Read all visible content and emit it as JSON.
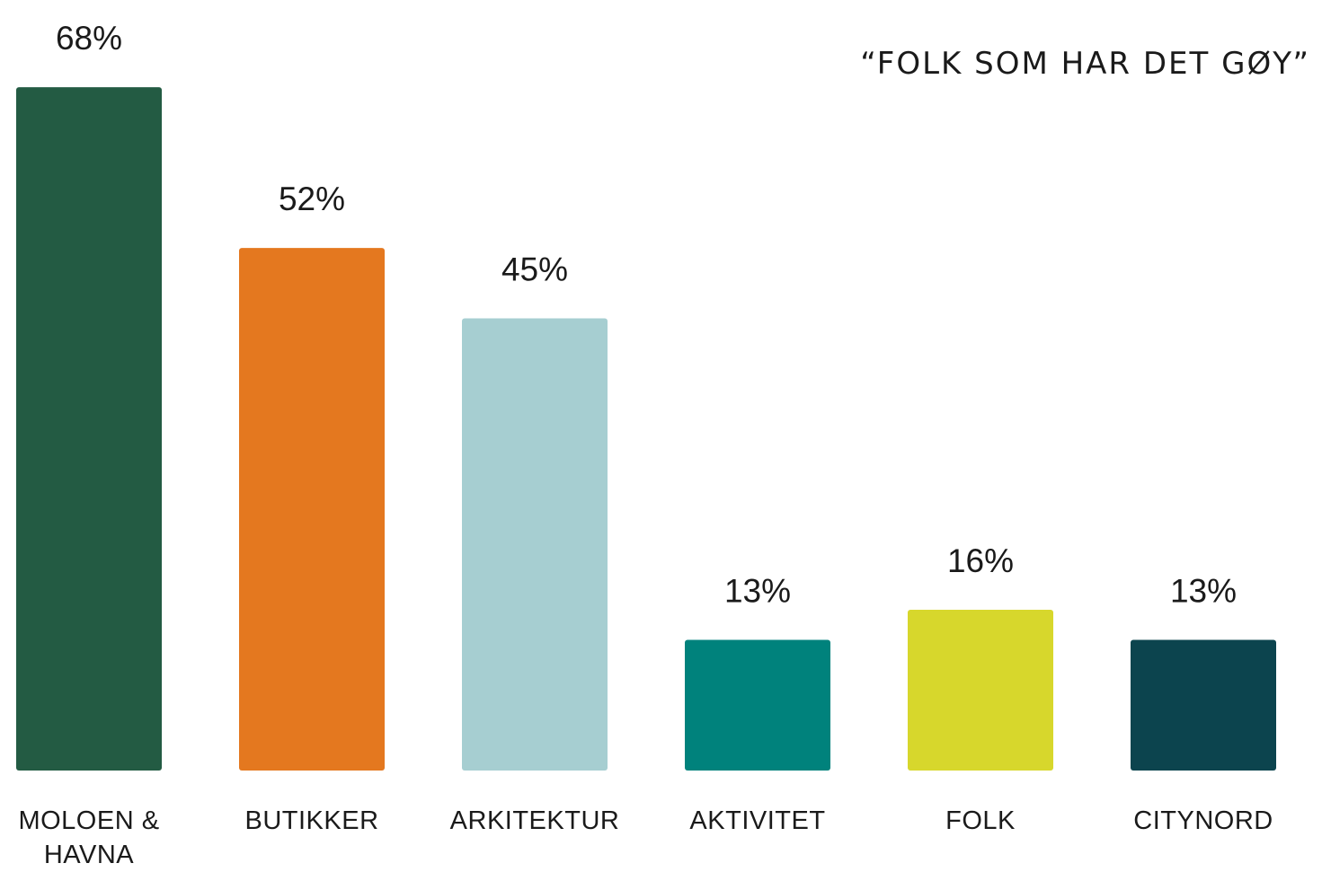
{
  "chart_data": {
    "type": "bar",
    "title": "“FOLK SOM HAR DET GØY”",
    "categories": [
      "MOLOEN & HAVNA",
      "BUTIKKER",
      "ARKITEKTUR",
      "AKTIVITET",
      "FOLK",
      "CITYNORD"
    ],
    "values": [
      68,
      52,
      45,
      13,
      16,
      13
    ],
    "value_labels": [
      "68%",
      "52%",
      "45%",
      "13%",
      "16%",
      "13%"
    ],
    "colors": [
      "#235b43",
      "#e4781f",
      "#a6ced1",
      "#00827c",
      "#d7d72c",
      "#0c444e"
    ]
  }
}
